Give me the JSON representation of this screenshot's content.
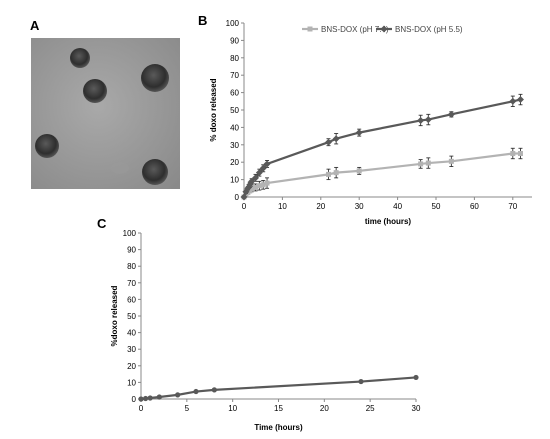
{
  "figure": {
    "panel_labels": {
      "a": "A",
      "b": "B",
      "c": "C"
    }
  },
  "chart_data": [
    {
      "panel": "B",
      "type": "line",
      "xlabel": "time (hours)",
      "ylabel": "% doxo released",
      "xlim": [
        0,
        75
      ],
      "ylim": [
        0,
        100
      ],
      "x_ticks": [
        0,
        10,
        20,
        30,
        40,
        50,
        60,
        70
      ],
      "y_ticks": [
        0,
        10,
        20,
        30,
        40,
        50,
        60,
        70,
        80,
        90,
        100
      ],
      "legend_position": "top-right",
      "grid": false,
      "series": [
        {
          "name": "BNS-DOX (pH 7.4)",
          "color": "#b3b3b3",
          "marker": "square",
          "x": [
            0,
            0.5,
            1,
            1.5,
            2,
            3,
            4,
            5,
            6,
            22,
            24,
            30,
            46,
            48,
            54,
            70,
            72
          ],
          "y": [
            0,
            1.5,
            2.5,
            3.5,
            4.5,
            5.5,
            6.5,
            7,
            8,
            13,
            14,
            15,
            19,
            19.5,
            20.5,
            25,
            25
          ],
          "err": [
            0.5,
            1,
            1,
            1,
            1.5,
            2,
            2.5,
            2.5,
            3,
            3,
            3,
            2,
            2.5,
            3,
            3,
            3,
            3
          ]
        },
        {
          "name": "BNS-DOX (pH 5.5)",
          "color": "#595959",
          "marker": "diamond",
          "x": [
            0,
            0.5,
            1,
            1.5,
            2,
            3,
            4,
            5,
            6,
            22,
            24,
            30,
            46,
            48,
            54,
            70,
            72
          ],
          "y": [
            0,
            3,
            5,
            7,
            9,
            11,
            14,
            16.5,
            19,
            31.5,
            33.5,
            37,
            44,
            44.5,
            47.5,
            55,
            56
          ],
          "err": [
            0.5,
            1,
            1,
            1.5,
            1.5,
            2,
            2,
            2,
            2,
            2,
            3,
            2,
            3,
            3,
            1.5,
            3,
            3
          ]
        }
      ]
    },
    {
      "panel": "C",
      "type": "line",
      "xlabel": "Time (hours)",
      "ylabel": "%doxo released",
      "xlim": [
        0,
        30
      ],
      "ylim": [
        0,
        100
      ],
      "x_ticks": [
        0,
        5,
        10,
        15,
        20,
        25,
        30
      ],
      "y_ticks": [
        0,
        10,
        20,
        30,
        40,
        50,
        60,
        70,
        80,
        90,
        100
      ],
      "grid": false,
      "series": [
        {
          "color": "#595959",
          "marker": "circle",
          "x": [
            0,
            0.5,
            1,
            2,
            4,
            6,
            8,
            24,
            30
          ],
          "y": [
            0,
            0.3,
            0.6,
            1.2,
            2.5,
            4.5,
            5.5,
            10.5,
            13
          ]
        }
      ]
    }
  ]
}
